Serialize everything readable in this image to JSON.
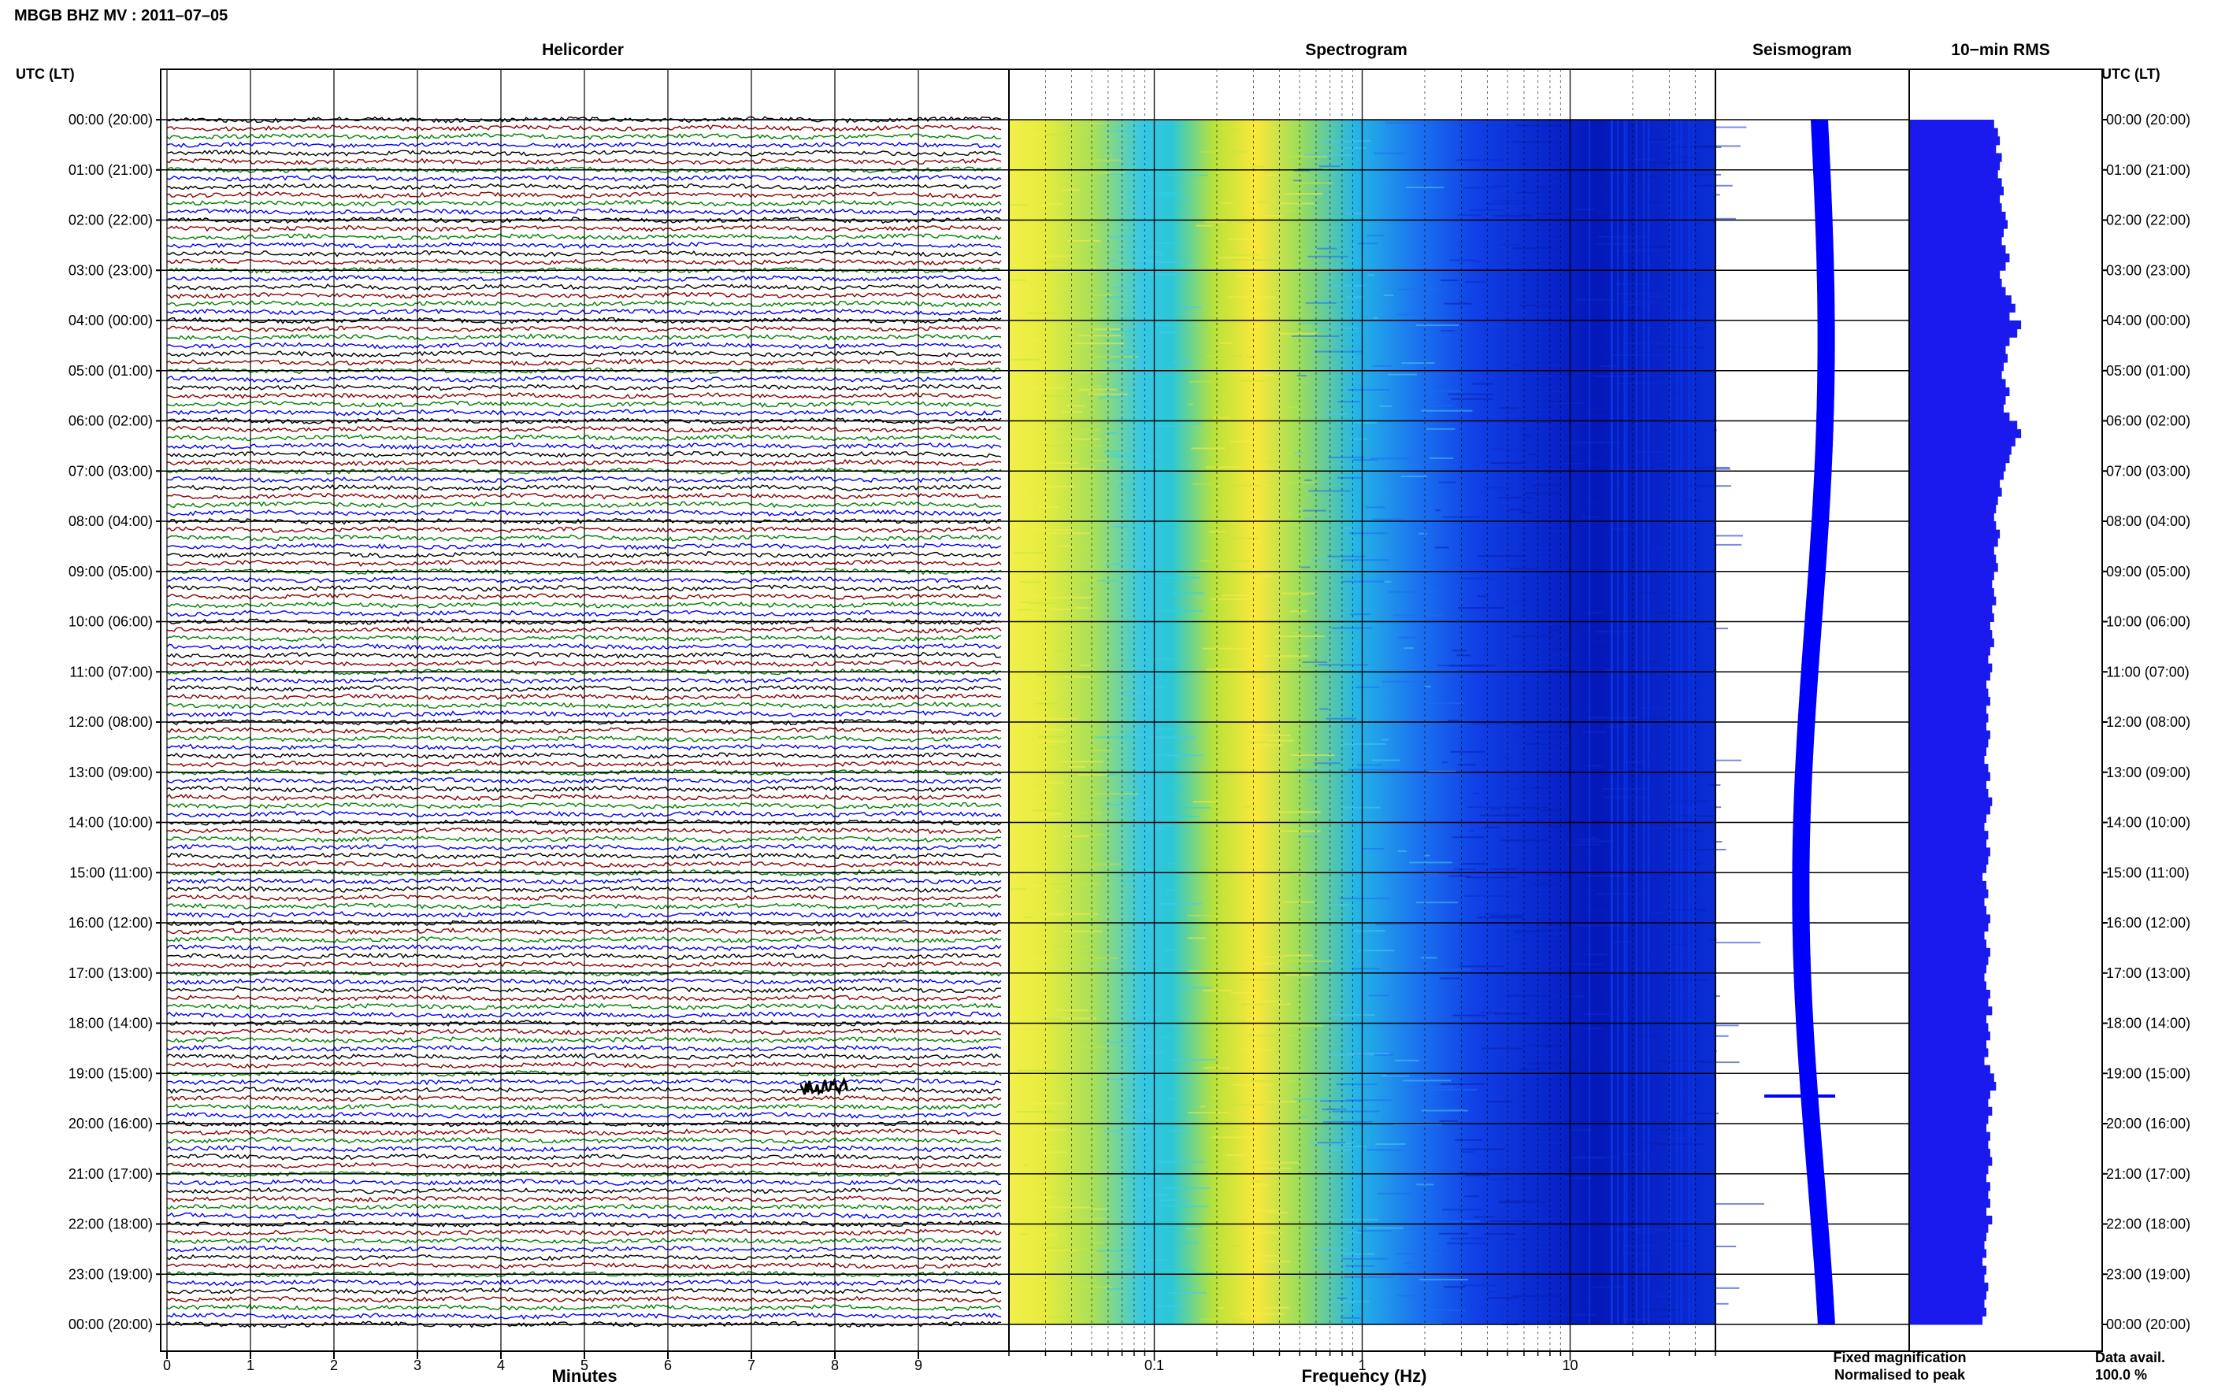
{
  "header": {
    "station_title": "MBGB BHZ MV : 2011–07–05"
  },
  "panels": {
    "helicorder": "Helicorder",
    "spectrogram": "Spectrogram",
    "seismogram": "Seismogram",
    "rms": "10−min RMS"
  },
  "axes": {
    "time_axis_label": "UTC (LT)",
    "minutes_label": "Minutes",
    "frequency_label": "Frequency (Hz)"
  },
  "legend": {
    "fixed": "Fixed magnification",
    "fixed_color": "#0000ff",
    "normalised": "Normalised to peak",
    "normalised_color": "#ff0000"
  },
  "availability": {
    "label": "Data avail.",
    "value": "100.0 %"
  },
  "chart_data": {
    "type": "heatmap",
    "hour_labels": [
      "00:00 (20:00)",
      "01:00 (21:00)",
      "02:00 (22:00)",
      "03:00 (23:00)",
      "04:00 (00:00)",
      "05:00 (01:00)",
      "06:00 (02:00)",
      "07:00 (03:00)",
      "08:00 (04:00)",
      "09:00 (05:00)",
      "10:00 (06:00)",
      "11:00 (07:00)",
      "12:00 (08:00)",
      "13:00 (09:00)",
      "14:00 (10:00)",
      "15:00 (11:00)",
      "16:00 (12:00)",
      "17:00 (13:00)",
      "18:00 (14:00)",
      "19:00 (15:00)",
      "20:00 (16:00)",
      "21:00 (17:00)",
      "22:00 (18:00)",
      "23:00 (19:00)",
      "00:00 (20:00)"
    ],
    "minutes_ticks": [
      "0",
      "1",
      "2",
      "3",
      "4",
      "5",
      "6",
      "7",
      "8",
      "9"
    ],
    "minutes_range": [
      0,
      10
    ],
    "frequency_ticks": [
      "0.1",
      "1",
      "10"
    ],
    "frequency_range": [
      0.02,
      50
    ],
    "frequency_scale": "log",
    "trace_colors": [
      "#000000",
      "#8b0000",
      "#008000",
      "#0000ff"
    ],
    "traces_per_hour": 6,
    "rms_values": [
      0.44,
      0.46,
      0.47,
      0.45,
      0.48,
      0.47,
      0.46,
      0.48,
      0.49,
      0.47,
      0.48,
      0.5,
      0.51,
      0.49,
      0.48,
      0.5,
      0.52,
      0.5,
      0.47,
      0.48,
      0.5,
      0.53,
      0.55,
      0.52,
      0.58,
      0.56,
      0.52,
      0.5,
      0.51,
      0.49,
      0.48,
      0.5,
      0.52,
      0.5,
      0.49,
      0.52,
      0.56,
      0.58,
      0.55,
      0.53,
      0.52,
      0.5,
      0.49,
      0.47,
      0.48,
      0.46,
      0.45,
      0.44,
      0.45,
      0.47,
      0.46,
      0.44,
      0.45,
      0.46,
      0.44,
      0.43,
      0.44,
      0.45,
      0.43,
      0.44,
      0.42,
      0.43,
      0.44,
      0.42,
      0.41,
      0.43,
      0.42,
      0.4,
      0.41,
      0.42,
      0.4,
      0.41,
      0.4,
      0.42,
      0.41,
      0.4,
      0.39,
      0.41,
      0.42,
      0.4,
      0.41,
      0.43,
      0.42,
      0.4,
      0.39,
      0.41,
      0.4,
      0.42,
      0.41,
      0.4,
      0.38,
      0.4,
      0.41,
      0.39,
      0.4,
      0.42,
      0.41,
      0.39,
      0.4,
      0.42,
      0.41,
      0.4,
      0.39,
      0.4,
      0.42,
      0.41,
      0.43,
      0.4,
      0.41,
      0.42,
      0.4,
      0.41,
      0.39,
      0.42,
      0.44,
      0.45,
      0.42,
      0.41,
      0.43,
      0.41,
      0.4,
      0.42,
      0.41,
      0.42,
      0.43,
      0.41,
      0.4,
      0.42,
      0.41,
      0.42,
      0.4,
      0.43,
      0.41,
      0.4,
      0.39,
      0.4,
      0.38,
      0.4,
      0.39,
      0.41,
      0.4,
      0.39,
      0.4,
      0.38
    ],
    "seismogram_event": {
      "hour": 19,
      "minute_fraction": 0.4
    }
  }
}
